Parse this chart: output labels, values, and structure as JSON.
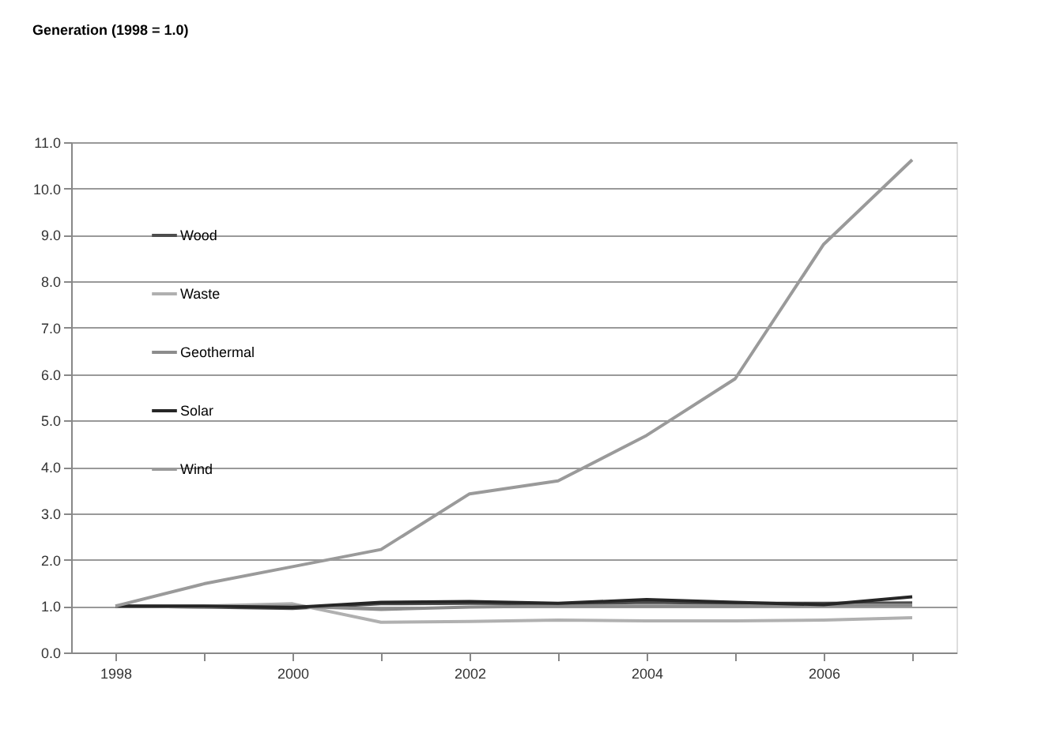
{
  "chart_data": {
    "type": "line",
    "title": "Generation (1998 = 1.0)",
    "categories": [
      "1998",
      null,
      "2000",
      null,
      "2002",
      null,
      "2004",
      null,
      "2006",
      null
    ],
    "series": [
      {
        "name": "Wood",
        "color": "#4d4d4d",
        "values": [
          1.0,
          0.98,
          0.95,
          1.05,
          1.06,
          1.05,
          1.08,
          1.06,
          1.06,
          1.07
        ]
      },
      {
        "name": "Waste",
        "color": "#b0b0b0",
        "values": [
          1.0,
          1.0,
          1.05,
          0.65,
          0.67,
          0.7,
          0.68,
          0.68,
          0.7,
          0.75
        ]
      },
      {
        "name": "Geothermal",
        "color": "#8c8c8c",
        "values": [
          1.0,
          0.98,
          1.0,
          0.93,
          0.98,
          1.0,
          1.0,
          1.0,
          1.02,
          1.02
        ]
      },
      {
        "name": "Solar",
        "color": "#262626",
        "values": [
          1.0,
          1.0,
          0.97,
          1.08,
          1.1,
          1.06,
          1.14,
          1.08,
          1.03,
          1.2
        ]
      },
      {
        "name": "Wind",
        "color": "#9a9a9a",
        "values": [
          1.0,
          1.48,
          1.85,
          2.22,
          3.42,
          3.7,
          4.68,
          5.9,
          8.8,
          10.62
        ]
      }
    ],
    "ylim": [
      0,
      11
    ],
    "yticks": [
      {
        "value": 0,
        "label": "0.0"
      },
      {
        "value": 1,
        "label": "1.0"
      },
      {
        "value": 2,
        "label": "2.0"
      },
      {
        "value": 3,
        "label": "3.0"
      },
      {
        "value": 4,
        "label": "4.0"
      },
      {
        "value": 5,
        "label": "5.0"
      },
      {
        "value": 6,
        "label": "6.0"
      },
      {
        "value": 7,
        "label": "7.0"
      },
      {
        "value": 8,
        "label": "8.0"
      },
      {
        "value": 9,
        "label": "9.0"
      },
      {
        "value": 10,
        "label": "10.0"
      },
      {
        "value": 11,
        "label": "11.0"
      }
    ],
    "grid": "y",
    "legend": "top left",
    "line_style": "solid",
    "marker": "none"
  }
}
